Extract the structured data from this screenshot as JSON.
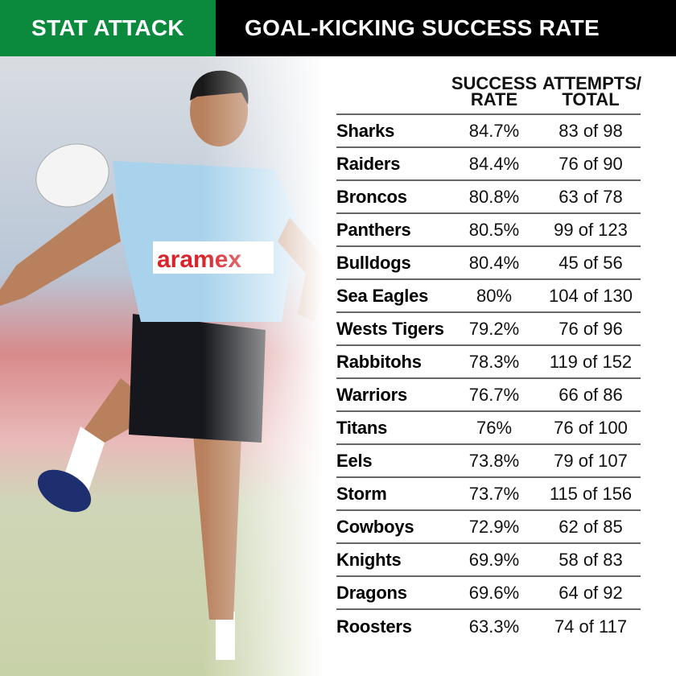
{
  "header": {
    "tag": "STAT ATTACK",
    "title": "GOAL-KICKING SUCCESS RATE"
  },
  "colors": {
    "tag_background": "#0b8a3e",
    "title_background": "#000000",
    "jersey": "#a9d3ec"
  },
  "photo": {
    "description_icon": "player-kicking-photo"
  },
  "chart_data": {
    "type": "table",
    "columns": [
      "",
      "SUCCESS\nRATE",
      "ATTEMPTS/\nTOTAL"
    ],
    "rows": [
      {
        "team": "Sharks",
        "rate": "84.7%",
        "attempts": "83 of 98"
      },
      {
        "team": "Raiders",
        "rate": "84.4%",
        "attempts": "76 of 90"
      },
      {
        "team": "Broncos",
        "rate": "80.8%",
        "attempts": "63 of 78"
      },
      {
        "team": "Panthers",
        "rate": "80.5%",
        "attempts": "99 of 123"
      },
      {
        "team": "Bulldogs",
        "rate": "80.4%",
        "attempts": "45 of 56"
      },
      {
        "team": "Sea Eagles",
        "rate": "80%",
        "attempts": "104 of 130"
      },
      {
        "team": "Wests Tigers",
        "rate": "79.2%",
        "attempts": "76 of 96"
      },
      {
        "team": "Rabbitohs",
        "rate": "78.3%",
        "attempts": "119 of 152"
      },
      {
        "team": "Warriors",
        "rate": "76.7%",
        "attempts": "66 of 86"
      },
      {
        "team": "Titans",
        "rate": "76%",
        "attempts": "76 of 100"
      },
      {
        "team": "Eels",
        "rate": "73.8%",
        "attempts": "79 of 107"
      },
      {
        "team": "Storm",
        "rate": "73.7%",
        "attempts": "115 of 156"
      },
      {
        "team": "Cowboys",
        "rate": "72.9%",
        "attempts": "62 of 85"
      },
      {
        "team": "Knights",
        "rate": "69.9%",
        "attempts": "58 of 83"
      },
      {
        "team": "Dragons",
        "rate": "69.6%",
        "attempts": "64 of 92"
      },
      {
        "team": "Roosters",
        "rate": "63.3%",
        "attempts": "74 of 117"
      }
    ]
  }
}
